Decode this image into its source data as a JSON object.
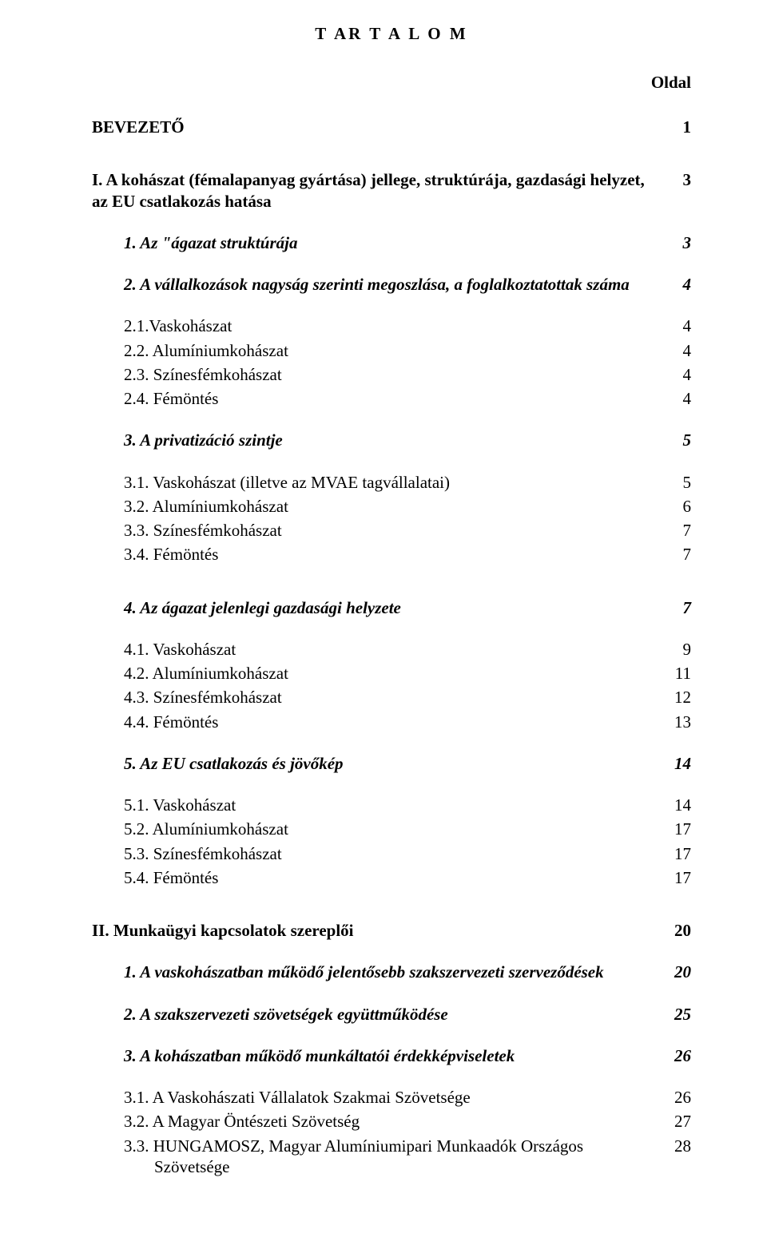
{
  "title": "T AR T A L O M",
  "page_header": "Oldal",
  "entries": [
    {
      "label": "BEVEZETŐ",
      "page": "1",
      "bold": true,
      "italic": false,
      "indent": 0,
      "gap": "section"
    },
    {
      "label": "I. A kohászat (fémalapanyag gyártása) jellege, struktúrája, gazdasági helyzet, az EU csatlakozás hatása",
      "page": "3",
      "bold": true,
      "italic": false,
      "indent": 0,
      "gap": "section-large"
    },
    {
      "label": "1. Az \"ágazat struktúrája",
      "page": "3",
      "bold": true,
      "italic": true,
      "indent": 1,
      "gap": "sub"
    },
    {
      "label": "2. A vállalkozások nagyság szerinti megoszlása, a foglalkoztatottak száma",
      "page": "4",
      "bold": true,
      "italic": true,
      "indent": 1,
      "gap": "sub"
    },
    {
      "label": "2.1.Vaskohászat",
      "page": "4",
      "bold": false,
      "italic": false,
      "indent": 2,
      "gap": "sub"
    },
    {
      "label": "2.2. Alumíniumkohászat",
      "page": "4",
      "bold": false,
      "italic": false,
      "indent": 2,
      "gap": "item"
    },
    {
      "label": "2.3. Színesfémkohászat",
      "page": "4",
      "bold": false,
      "italic": false,
      "indent": 2,
      "gap": "item"
    },
    {
      "label": "2.4. Fémöntés",
      "page": "4",
      "bold": false,
      "italic": false,
      "indent": 2,
      "gap": "item"
    },
    {
      "label": "3. A privatizáció szintje",
      "page": "5",
      "bold": true,
      "italic": true,
      "indent": 1,
      "gap": "sub"
    },
    {
      "label": "3.1. Vaskohászat (illetve az MVAE tagvállalatai)",
      "page": "5",
      "bold": false,
      "italic": false,
      "indent": 2,
      "gap": "sub"
    },
    {
      "label": "3.2. Alumíniumkohászat",
      "page": "6",
      "bold": false,
      "italic": false,
      "indent": 2,
      "gap": "item"
    },
    {
      "label": "3.3. Színesfémkohászat",
      "page": "7",
      "bold": false,
      "italic": false,
      "indent": 2,
      "gap": "item"
    },
    {
      "label": "3.4. Fémöntés",
      "page": "7",
      "bold": false,
      "italic": false,
      "indent": 2,
      "gap": "item"
    },
    {
      "label": "4. Az ágazat jelenlegi gazdasági helyzete",
      "page": "7",
      "bold": true,
      "italic": true,
      "indent": 1,
      "gap": "section-large"
    },
    {
      "label": "4.1. Vaskohászat",
      "page": "9",
      "bold": false,
      "italic": false,
      "indent": 2,
      "gap": "sub"
    },
    {
      "label": "4.2. Alumíniumkohászat",
      "page": "11",
      "bold": false,
      "italic": false,
      "indent": 2,
      "gap": "item"
    },
    {
      "label": "4.3. Színesfémkohászat",
      "page": "12",
      "bold": false,
      "italic": false,
      "indent": 2,
      "gap": "item"
    },
    {
      "label": "4.4. Fémöntés",
      "page": "13",
      "bold": false,
      "italic": false,
      "indent": 2,
      "gap": "item"
    },
    {
      "label": "5. Az EU csatlakozás és jövőkép",
      "page": "14",
      "bold": true,
      "italic": true,
      "indent": 1,
      "gap": "sub"
    },
    {
      "label": "5.1. Vaskohászat",
      "page": "14",
      "bold": false,
      "italic": false,
      "indent": 2,
      "gap": "sub"
    },
    {
      "label": "5.2. Alumíniumkohászat",
      "page": "17",
      "bold": false,
      "italic": false,
      "indent": 2,
      "gap": "item"
    },
    {
      "label": "5.3. Színesfémkohászat",
      "page": "17",
      "bold": false,
      "italic": false,
      "indent": 2,
      "gap": "item"
    },
    {
      "label": "5.4. Fémöntés",
      "page": "17",
      "bold": false,
      "italic": false,
      "indent": 2,
      "gap": "item"
    },
    {
      "label": "II. Munkaügyi kapcsolatok szereplői",
      "page": "20",
      "bold": true,
      "italic": false,
      "indent": 0,
      "gap": "section-large"
    },
    {
      "label": "1. A vaskohászatban működő jelentősebb szakszervezeti szerveződések",
      "page": "20",
      "bold": true,
      "italic": true,
      "indent": 1,
      "gap": "sub"
    },
    {
      "label": "2. A szakszervezeti szövetségek együttműködése",
      "page": "25",
      "bold": true,
      "italic": true,
      "indent": 1,
      "gap": "sub"
    },
    {
      "label": "3. A kohászatban működő munkáltatói érdekképviseletek",
      "page": "26",
      "bold": true,
      "italic": true,
      "indent": 1,
      "gap": "sub"
    },
    {
      "label": "3.1. A Vaskohászati Vállalatok Szakmai Szövetsége",
      "page": "26",
      "bold": false,
      "italic": false,
      "indent": 2,
      "gap": "sub"
    },
    {
      "label": "3.2. A Magyar Öntészeti Szövetség",
      "page": "27",
      "bold": false,
      "italic": false,
      "indent": 2,
      "gap": "item"
    },
    {
      "label": "3.3. HUNGAMOSZ, Magyar Alumíniumipari Munkaadók Országos Szövetsége",
      "page": "28",
      "bold": false,
      "italic": false,
      "indent": 2,
      "gap": "item",
      "hang": true
    }
  ]
}
